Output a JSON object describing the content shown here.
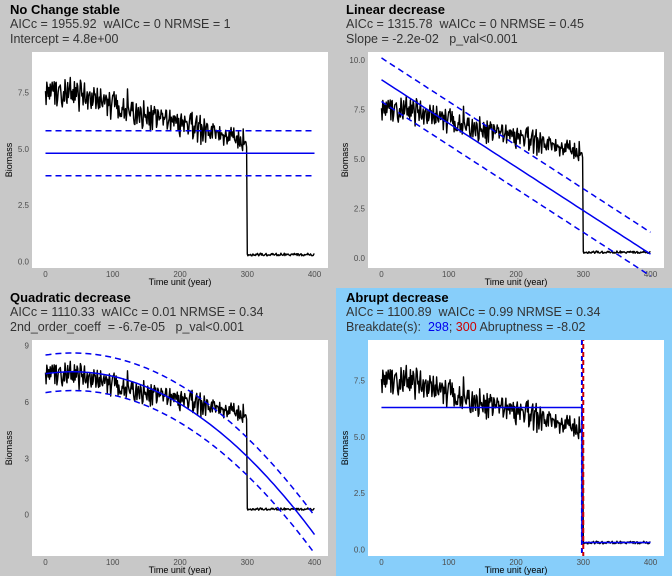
{
  "colors": {
    "panel_bg": "#c8c8c8",
    "highlight_bg": "#87cefa",
    "plot_bg": "#ffffff",
    "series": "#000000",
    "fit": "#0000ee",
    "breakpoint": "#cc0000"
  },
  "chart_data": [
    {
      "type": "line",
      "title": "No Change stable",
      "subtitle_1": "AICc = 1955.92  wAICc = 0 NRMSE = 1",
      "subtitle_2": "Intercept = 4.8e+00",
      "xlabel": "Time unit (year)",
      "ylabel": "Biomass",
      "xlim": [
        -20,
        420
      ],
      "ylim": [
        -0.3,
        9.3
      ],
      "xticks": [
        0,
        100,
        200,
        300,
        400
      ],
      "xtick_labels": [
        "0",
        "100",
        "200",
        "300",
        "400"
      ],
      "yticks": [
        0,
        2.5,
        5,
        7.5
      ],
      "ytick_labels": [
        "0.0",
        "2.5",
        "5.0",
        "7.5"
      ],
      "highlight": false,
      "series": [
        {
          "kind": "observed",
          "pre_start": 7.8,
          "pre_end": 5.3,
          "noise": 0.45,
          "jump_at": 300,
          "post_level": 0.3
        },
        {
          "kind": "fit-constant",
          "value": 4.8,
          "band": 1.0
        }
      ]
    },
    {
      "type": "line",
      "title": "Linear decrease",
      "subtitle_1": "AICc = 1315.78  wAICc = 0 NRMSE = 0.45",
      "subtitle_2": "Slope = -2.2e-02   p_val<0.001",
      "xlabel": "Time unit (year)",
      "ylabel": "Biomass",
      "xlim": [
        -20,
        420
      ],
      "ylim": [
        -0.5,
        10.4
      ],
      "xticks": [
        0,
        100,
        200,
        300,
        400
      ],
      "xtick_labels": [
        "0",
        "100",
        "200",
        "300",
        "400"
      ],
      "yticks": [
        0,
        2.5,
        5,
        7.5,
        10
      ],
      "ytick_labels": [
        "0.0",
        "2.5",
        "5.0",
        "7.5",
        "10.0"
      ],
      "highlight": false,
      "series": [
        {
          "kind": "observed",
          "pre_start": 7.8,
          "pre_end": 5.3,
          "noise": 0.45,
          "jump_at": 300,
          "post_level": 0.3
        },
        {
          "kind": "fit-linear",
          "x": [
            0,
            400
          ],
          "y": [
            9.0,
            0.2
          ],
          "band": 1.1
        }
      ]
    },
    {
      "type": "line",
      "title": "Quadratic decrease",
      "subtitle_1": "AICc = 1110.33  wAICc = 0.01 NRMSE = 0.34",
      "subtitle_2": "2nd_order_coeff  = -6.7e-05   p_val<0.001",
      "xlabel": "Time unit (year)",
      "ylabel": "Biomass",
      "xlim": [
        -20,
        420
      ],
      "ylim": [
        -2.2,
        9.3
      ],
      "xticks": [
        0,
        100,
        200,
        300,
        400
      ],
      "xtick_labels": [
        "0",
        "100",
        "200",
        "300",
        "400"
      ],
      "yticks": [
        0,
        3,
        6,
        9
      ],
      "ytick_labels": [
        "0",
        "3",
        "6",
        "9"
      ],
      "highlight": false,
      "series": [
        {
          "kind": "observed",
          "pre_start": 7.8,
          "pre_end": 5.3,
          "noise": 0.45,
          "jump_at": 300,
          "post_level": 0.3
        },
        {
          "kind": "fit-quadratic",
          "coef": [
            7.5,
            0.0054,
            -6.7e-05
          ],
          "band": 1.0
        }
      ]
    },
    {
      "type": "line",
      "title": "Abrupt decrease",
      "subtitle_1": "AICc = 1100.89  wAICc = 0.99 NRMSE = 0.34",
      "subtitle_2_prefix": "Breakdate(s):  ",
      "breakdate_a": "298",
      "breakdate_sep": "; ",
      "breakdate_b": "300",
      "subtitle_2_suffix": " Abruptness = -8.02",
      "xlabel": "Time unit (year)",
      "ylabel": "Biomass",
      "xlim": [
        -20,
        420
      ],
      "ylim": [
        -0.3,
        9.3
      ],
      "xticks": [
        0,
        100,
        200,
        300,
        400
      ],
      "xtick_labels": [
        "0",
        "100",
        "200",
        "300",
        "400"
      ],
      "yticks": [
        0,
        2.5,
        5,
        7.5
      ],
      "ytick_labels": [
        "0.0",
        "2.5",
        "5.0",
        "7.5"
      ],
      "highlight": true,
      "series": [
        {
          "kind": "observed",
          "pre_start": 7.8,
          "pre_end": 5.3,
          "noise": 0.45,
          "jump_at": 300,
          "post_level": 0.3
        },
        {
          "kind": "fit-step",
          "level_before": 6.3,
          "level_after": 0.3,
          "break_a": 298,
          "break_b": 300
        }
      ]
    }
  ]
}
